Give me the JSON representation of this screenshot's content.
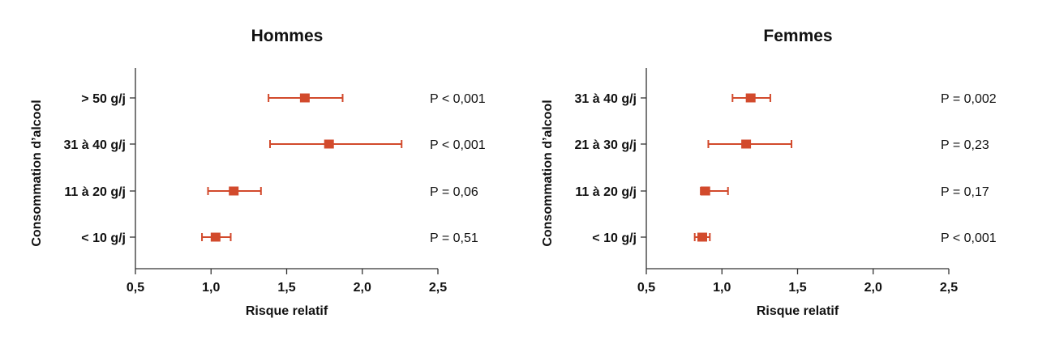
{
  "colors": {
    "marker": "#d24a2c",
    "axis": "#333333",
    "text": "#111111"
  },
  "chart_data": [
    {
      "type": "scatter",
      "subtype": "forest-plot",
      "title": "Hommes",
      "ylabel": "Consommation d’alcool",
      "xlabel": "Risque relatif",
      "xlim": [
        0.5,
        2.5
      ],
      "xticks": [
        "0,5",
        "1,0",
        "1,5",
        "2,0",
        "2,5"
      ],
      "xtick_values": [
        0.5,
        1.0,
        1.5,
        2.0,
        2.5
      ],
      "grid": false,
      "rows": [
        {
          "category": "> 50 g/j",
          "estimate": 1.62,
          "lower": 1.38,
          "upper": 1.87,
          "p": "P < 0,001"
        },
        {
          "category": "31 à 40 g/j",
          "estimate": 1.78,
          "lower": 1.39,
          "upper": 2.26,
          "p": "P < 0,001"
        },
        {
          "category": "11 à 20 g/j",
          "estimate": 1.15,
          "lower": 0.98,
          "upper": 1.33,
          "p": "P = 0,06"
        },
        {
          "category": "< 10 g/j",
          "estimate": 1.03,
          "lower": 0.94,
          "upper": 1.13,
          "p": "P = 0,51"
        }
      ]
    },
    {
      "type": "scatter",
      "subtype": "forest-plot",
      "title": "Femmes",
      "ylabel": "Consommation d’alcool",
      "xlabel": "Risque relatif",
      "xlim": [
        0.5,
        2.5
      ],
      "xticks": [
        "0,5",
        "1,0",
        "1,5",
        "2,0",
        "2,5"
      ],
      "xtick_values": [
        0.5,
        1.0,
        1.5,
        2.0,
        2.5
      ],
      "grid": false,
      "rows": [
        {
          "category": "31 à 40 g/j",
          "estimate": 1.19,
          "lower": 1.07,
          "upper": 1.32,
          "p": "P = 0,002"
        },
        {
          "category": "21 à 30 g/j",
          "estimate": 1.16,
          "lower": 0.91,
          "upper": 1.46,
          "p": "P = 0,23"
        },
        {
          "category": "11 à 20 g/j",
          "estimate": 0.89,
          "lower": 0.86,
          "upper": 1.04,
          "p": "P = 0,17"
        },
        {
          "category": "< 10 g/j",
          "estimate": 0.87,
          "lower": 0.82,
          "upper": 0.92,
          "p": "P < 0,001"
        }
      ]
    }
  ]
}
